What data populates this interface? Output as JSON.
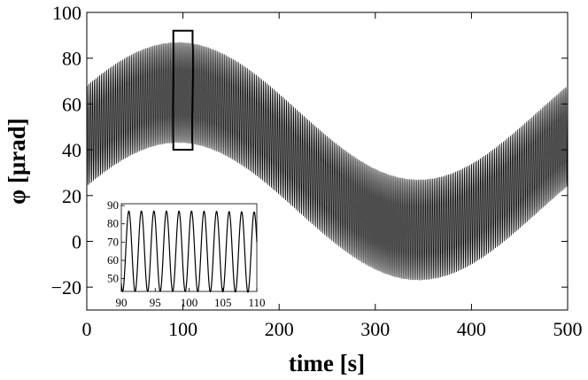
{
  "chart_data": [
    {
      "type": "line",
      "xlabel": "time [s]",
      "ylabel": "φ [μrad]",
      "xlim": [
        0,
        500
      ],
      "ylim": [
        -30,
        100
      ],
      "xticks": [
        0,
        100,
        200,
        300,
        400,
        500
      ],
      "yticks": [
        -20,
        0,
        20,
        40,
        60,
        80,
        100
      ],
      "xtick_labels": [
        "0",
        "100",
        "200",
        "300",
        "400",
        "500"
      ],
      "ytick_labels": [
        "−20",
        "0",
        "20",
        "40",
        "60",
        "80",
        "100"
      ],
      "grid": false,
      "series": [
        {
          "model": "slow sinusoidal drift with fast oscillation",
          "slow_mean": 35,
          "slow_amplitude": 30,
          "slow_period_s": 500,
          "slow_peak_time_s": 95,
          "fast_amplitude": 22,
          "fast_period_s": 1.85,
          "color": "#000000"
        }
      ],
      "highlight_box": {
        "x": [
          90,
          110
        ],
        "y": [
          40,
          92
        ]
      }
    },
    {
      "type": "line",
      "inset": true,
      "xlim": [
        90,
        110
      ],
      "ylim": [
        43,
        91
      ],
      "xticks": [
        90,
        95,
        100,
        105,
        110
      ],
      "yticks": [
        50,
        60,
        70,
        80,
        90
      ],
      "xtick_labels": [
        "90",
        "95",
        "100",
        "105",
        "110"
      ],
      "ytick_labels": [
        "50",
        "60",
        "70",
        "80",
        "90"
      ],
      "grid": false
    }
  ]
}
